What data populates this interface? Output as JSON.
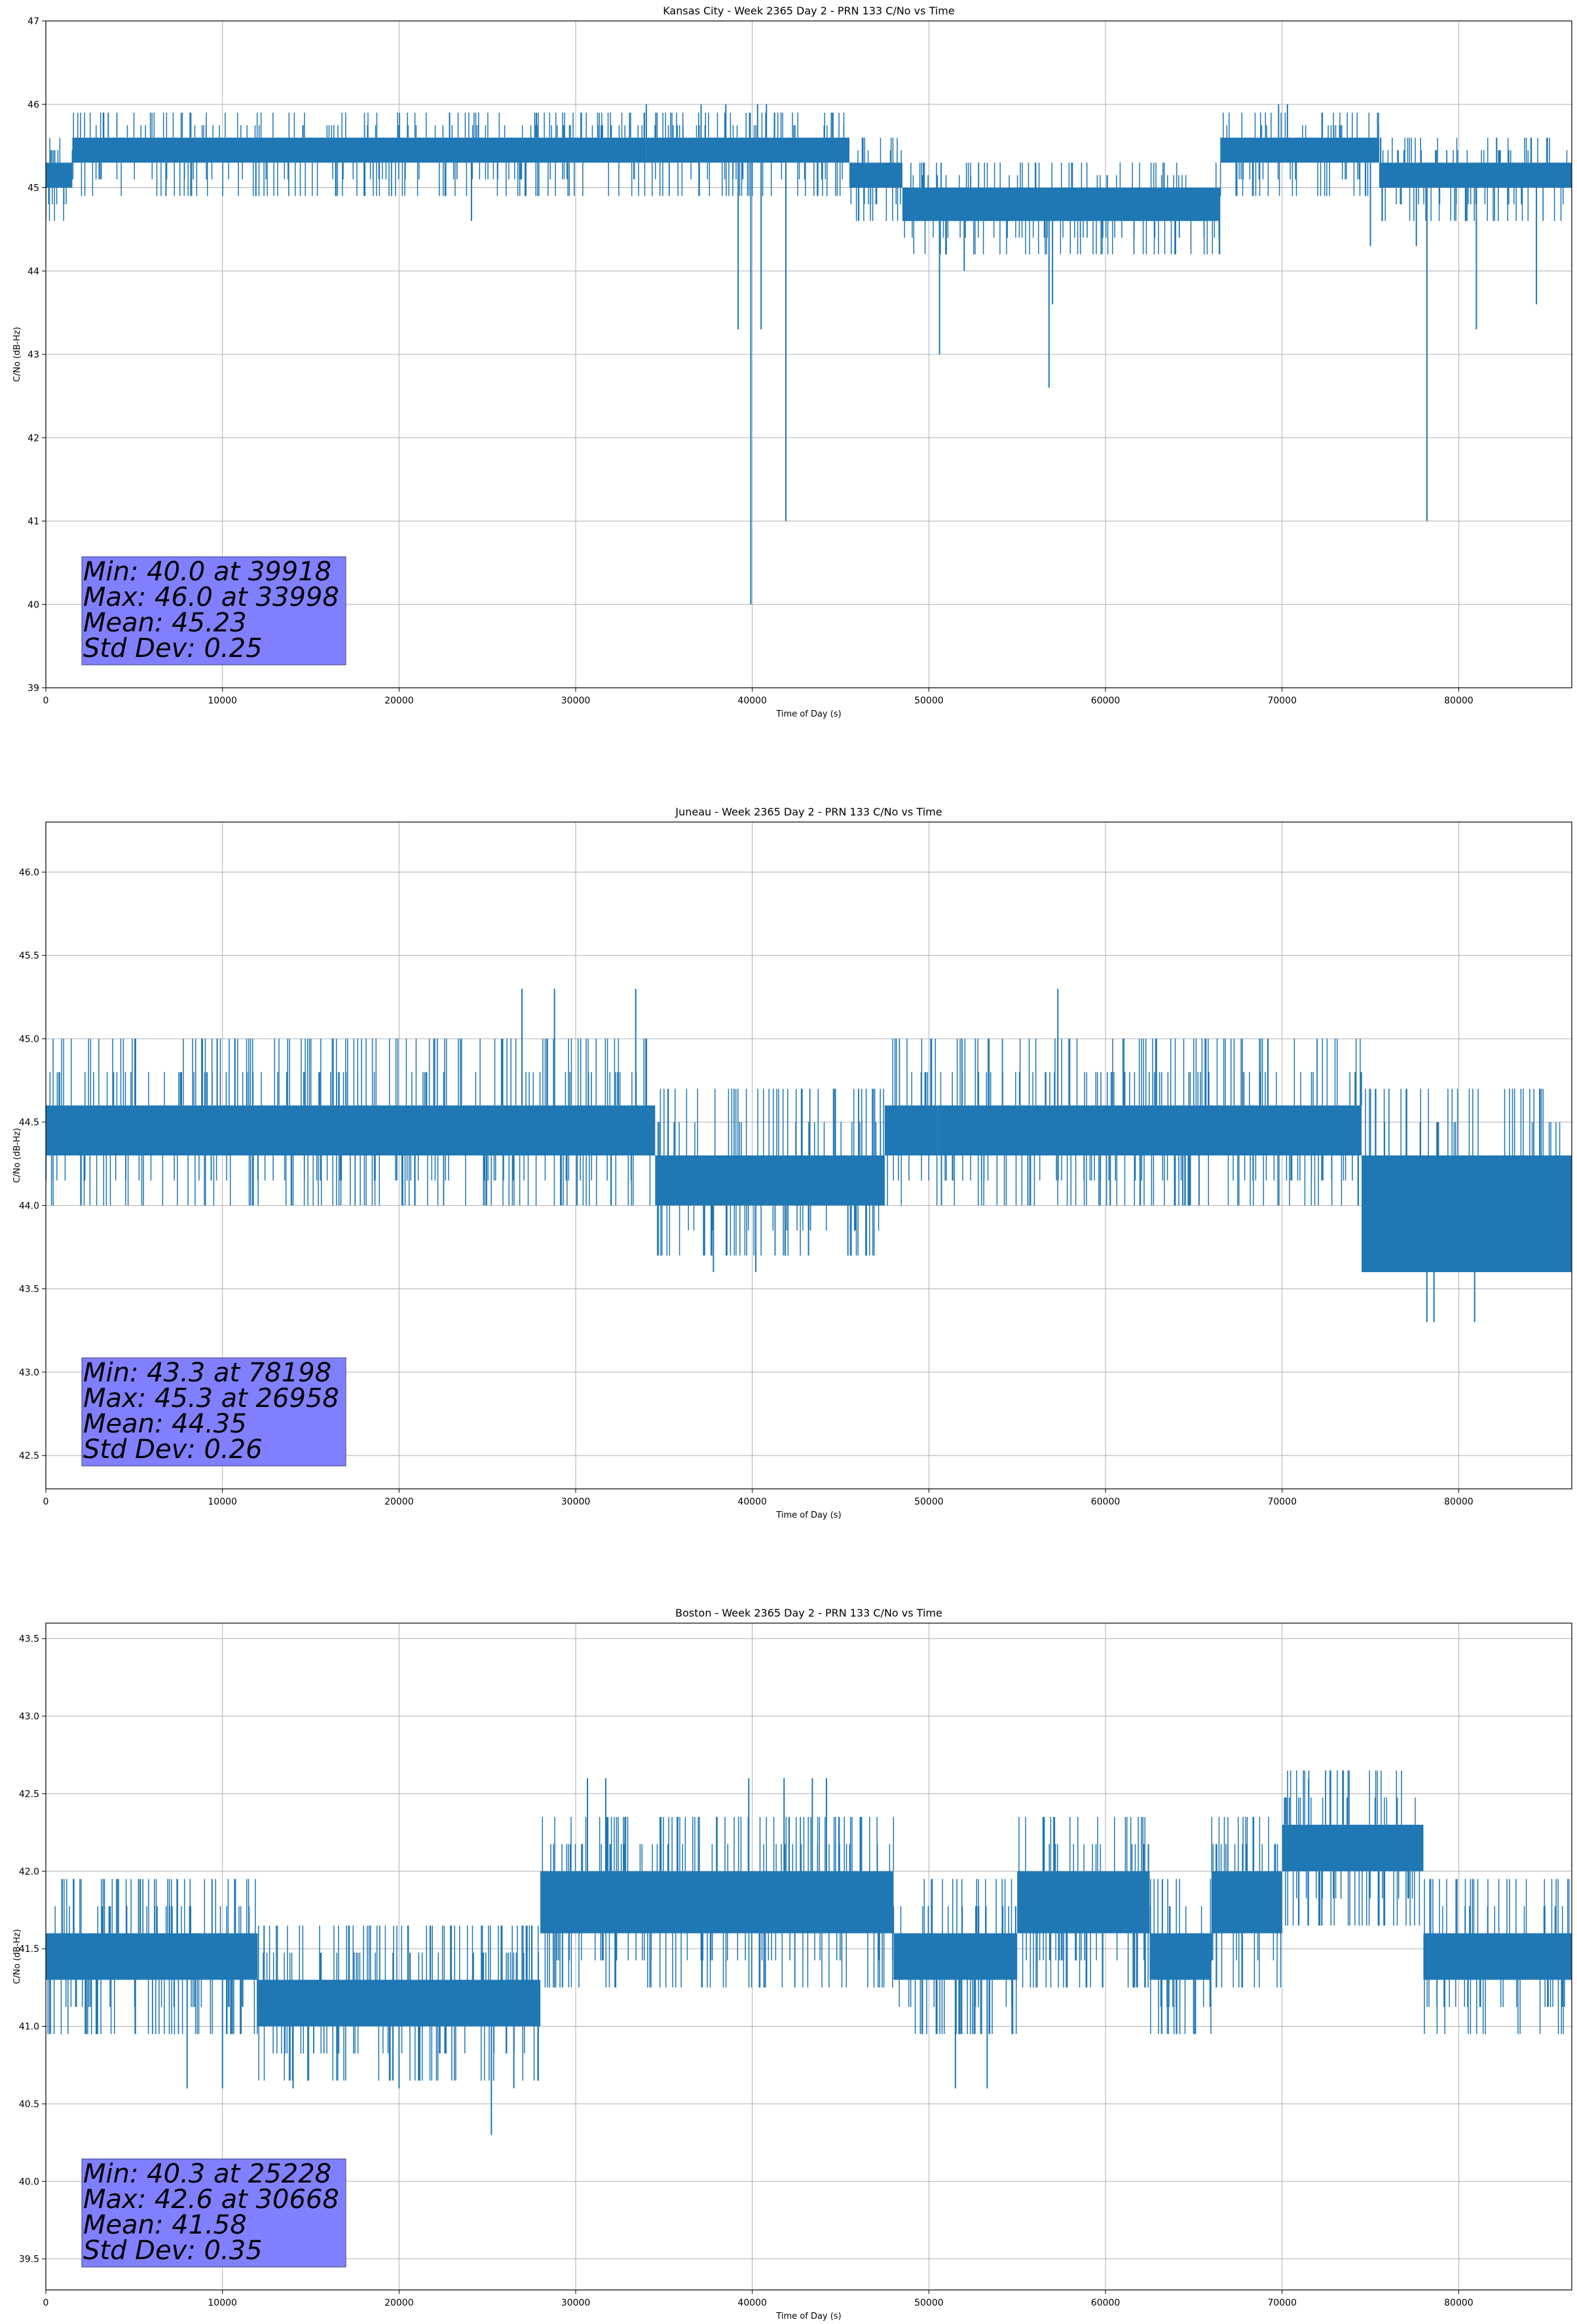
{
  "colors": {
    "series": "#1f77b4",
    "grid": "#b0b0b0",
    "statbox": "#8080ff"
  },
  "chart_data": [
    {
      "type": "line",
      "title": "Kansas City - Week 2365 Day 2 - PRN 133 C/No vs Time",
      "xlabel": "Time of Day (s)",
      "ylabel": "C/No (dB-Hz)",
      "xlim": [
        0,
        86400
      ],
      "ylim": [
        39,
        47
      ],
      "xticks": [
        0,
        10000,
        20000,
        30000,
        40000,
        50000,
        60000,
        70000,
        80000
      ],
      "yticks": [
        39,
        40,
        41,
        42,
        43,
        44,
        45,
        46,
        47
      ],
      "ytick_labels": [
        "39",
        "40",
        "41",
        "42",
        "43",
        "44",
        "45",
        "46",
        "47"
      ],
      "grid": true,
      "bands": [
        {
          "x": [
            0,
            1500
          ],
          "lo": 45.0,
          "hi": 45.3
        },
        {
          "x": [
            1500,
            33998
          ],
          "lo": 45.3,
          "hi": 45.6
        },
        {
          "x": [
            33998,
            45500
          ],
          "lo": 45.3,
          "hi": 45.6
        },
        {
          "x": [
            45500,
            48500
          ],
          "lo": 45.0,
          "hi": 45.3
        },
        {
          "x": [
            48500,
            66500
          ],
          "lo": 44.6,
          "hi": 45.0
        },
        {
          "x": [
            66500,
            75500
          ],
          "lo": 45.3,
          "hi": 45.6
        },
        {
          "x": [
            75500,
            86400
          ],
          "lo": 45.0,
          "hi": 45.3
        }
      ],
      "spikes": [
        {
          "x": 24100,
          "y": 44.6
        },
        {
          "x": 34000,
          "y": 46.0
        },
        {
          "x": 37100,
          "y": 46.0
        },
        {
          "x": 38500,
          "y": 46.0
        },
        {
          "x": 39200,
          "y": 43.3
        },
        {
          "x": 39918,
          "y": 40.0
        },
        {
          "x": 40300,
          "y": 46.0
        },
        {
          "x": 40500,
          "y": 43.3
        },
        {
          "x": 40800,
          "y": 46.0
        },
        {
          "x": 41900,
          "y": 41.0
        },
        {
          "x": 50600,
          "y": 43.0
        },
        {
          "x": 52000,
          "y": 44.0
        },
        {
          "x": 56800,
          "y": 42.6
        },
        {
          "x": 57000,
          "y": 43.6
        },
        {
          "x": 69800,
          "y": 46.0
        },
        {
          "x": 70300,
          "y": 46.0
        },
        {
          "x": 75000,
          "y": 44.3
        },
        {
          "x": 77600,
          "y": 44.3
        },
        {
          "x": 78200,
          "y": 41.0
        },
        {
          "x": 81000,
          "y": 43.3
        },
        {
          "x": 84400,
          "y": 43.6
        }
      ],
      "noise": {
        "count": 700,
        "up": 0.3,
        "down": 0.4
      },
      "stats": {
        "min": "Min: 40.0 at 39918",
        "max": "Max: 46.0 at 33998",
        "mean": "Mean: 45.23",
        "std": "Std Dev: 0.25"
      }
    },
    {
      "type": "line",
      "title": "Juneau - Week 2365 Day 2 - PRN 133 C/No vs Time",
      "xlabel": "Time of Day (s)",
      "ylabel": "C/No (dB-Hz)",
      "xlim": [
        0,
        86400
      ],
      "ylim": [
        42.3,
        46.3
      ],
      "xticks": [
        0,
        10000,
        20000,
        30000,
        40000,
        50000,
        60000,
        70000,
        80000
      ],
      "yticks": [
        42.5,
        43.0,
        43.5,
        44.0,
        44.5,
        45.0,
        45.5,
        46.0
      ],
      "ytick_labels": [
        "42.5",
        "43.0",
        "43.5",
        "44.0",
        "44.5",
        "45.0",
        "45.5",
        "46.0"
      ],
      "grid": true,
      "bands": [
        {
          "x": [
            0,
            34500
          ],
          "lo": 44.3,
          "hi": 44.6
        },
        {
          "x": [
            34500,
            47500
          ],
          "lo": 44.0,
          "hi": 44.3
        },
        {
          "x": [
            47500,
            50500
          ],
          "lo": 44.3,
          "hi": 44.6
        },
        {
          "x": [
            50500,
            74500
          ],
          "lo": 44.3,
          "hi": 44.6
        },
        {
          "x": [
            74500,
            86400
          ],
          "lo": 44.0,
          "hi": 44.3
        },
        {
          "x": [
            74500,
            86400
          ],
          "lo": 43.6,
          "hi": 44.0
        }
      ],
      "spikes": [
        {
          "x": 26958,
          "y": 45.3
        },
        {
          "x": 28800,
          "y": 45.3
        },
        {
          "x": 33400,
          "y": 45.3
        },
        {
          "x": 57300,
          "y": 45.3
        },
        {
          "x": 37800,
          "y": 43.6
        },
        {
          "x": 40200,
          "y": 43.6
        },
        {
          "x": 78198,
          "y": 43.3
        },
        {
          "x": 78600,
          "y": 43.3
        },
        {
          "x": 80900,
          "y": 43.3
        }
      ],
      "noise": {
        "count": 800,
        "up": 0.4,
        "down": 0.3
      },
      "stats": {
        "min": "Min: 43.3 at 78198",
        "max": "Max: 45.3 at 26958",
        "mean": "Mean: 44.35",
        "std": "Std Dev: 0.26"
      }
    },
    {
      "type": "line",
      "title": "Boston - Week 2365 Day 2 - PRN 133 C/No vs Time",
      "xlabel": "Time of Day (s)",
      "ylabel": "C/No (dB-Hz)",
      "xlim": [
        0,
        86400
      ],
      "ylim": [
        39.3,
        43.6
      ],
      "xticks": [
        0,
        10000,
        20000,
        30000,
        40000,
        50000,
        60000,
        70000,
        80000
      ],
      "yticks": [
        39.5,
        40.0,
        40.5,
        41.0,
        41.5,
        42.0,
        42.5,
        43.0,
        43.5
      ],
      "ytick_labels": [
        "39.5",
        "40.0",
        "40.5",
        "41.0",
        "41.5",
        "42.0",
        "42.5",
        "43.0",
        "43.5"
      ],
      "grid": true,
      "bands": [
        {
          "x": [
            0,
            12000
          ],
          "lo": 41.3,
          "hi": 41.6
        },
        {
          "x": [
            12000,
            28000
          ],
          "lo": 41.0,
          "hi": 41.3
        },
        {
          "x": [
            28000,
            48000
          ],
          "lo": 41.6,
          "hi": 42.0
        },
        {
          "x": [
            48000,
            55000
          ],
          "lo": 41.3,
          "hi": 41.6
        },
        {
          "x": [
            55000,
            62500
          ],
          "lo": 41.6,
          "hi": 42.0
        },
        {
          "x": [
            62500,
            66000
          ],
          "lo": 41.3,
          "hi": 41.6
        },
        {
          "x": [
            66000,
            70000
          ],
          "lo": 41.6,
          "hi": 42.0
        },
        {
          "x": [
            70000,
            78000
          ],
          "lo": 42.0,
          "hi": 42.3
        },
        {
          "x": [
            78000,
            86400
          ],
          "lo": 41.3,
          "hi": 41.6
        }
      ],
      "spikes": [
        {
          "x": 8000,
          "y": 40.6
        },
        {
          "x": 10000,
          "y": 40.6
        },
        {
          "x": 14000,
          "y": 40.6
        },
        {
          "x": 20000,
          "y": 40.6
        },
        {
          "x": 25228,
          "y": 40.3
        },
        {
          "x": 26500,
          "y": 40.6
        },
        {
          "x": 30668,
          "y": 42.6
        },
        {
          "x": 31700,
          "y": 42.6
        },
        {
          "x": 39800,
          "y": 42.6
        },
        {
          "x": 41800,
          "y": 42.6
        },
        {
          "x": 43400,
          "y": 42.6
        },
        {
          "x": 44200,
          "y": 42.6
        },
        {
          "x": 51500,
          "y": 40.6
        },
        {
          "x": 53300,
          "y": 40.6
        },
        {
          "x": 71500,
          "y": 42.6
        }
      ],
      "noise": {
        "count": 900,
        "up": 0.35,
        "down": 0.35
      },
      "stats": {
        "min": "Min: 40.3 at 25228",
        "max": "Max: 42.6 at 30668",
        "mean": "Mean: 41.58",
        "std": "Std Dev: 0.35"
      }
    }
  ]
}
